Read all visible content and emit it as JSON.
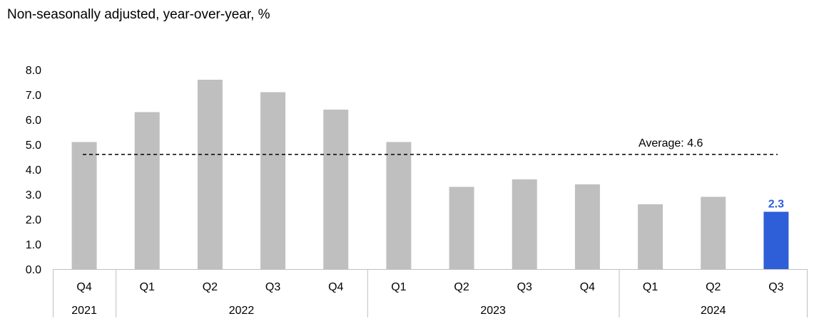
{
  "chart_data": {
    "type": "bar",
    "subtitle": "Non-seasonally adjusted, year-over-year, %",
    "categories": [
      "Q4",
      "Q1",
      "Q2",
      "Q3",
      "Q4",
      "Q1",
      "Q2",
      "Q3",
      "Q4",
      "Q1",
      "Q2",
      "Q3"
    ],
    "years": [
      {
        "label": "2021",
        "count": 1
      },
      {
        "label": "2022",
        "count": 4
      },
      {
        "label": "2023",
        "count": 4
      },
      {
        "label": "2024",
        "count": 3
      }
    ],
    "values": [
      5.1,
      6.3,
      7.6,
      7.1,
      6.4,
      5.1,
      3.3,
      3.6,
      3.4,
      2.6,
      2.9,
      2.3
    ],
    "ylim": [
      0,
      8
    ],
    "yticks": [
      "0.0",
      "1.0",
      "2.0",
      "3.0",
      "4.0",
      "5.0",
      "6.0",
      "7.0",
      "8.0"
    ],
    "average": {
      "value": 4.6,
      "label": "Average: 4.6"
    },
    "data_labels": [
      {
        "index": 11,
        "text": "2.3"
      }
    ],
    "colors": {
      "bar": "#bfbfbf",
      "highlight": "#2e5fd8",
      "average_line": "#000000"
    },
    "highlight_index": 11
  }
}
